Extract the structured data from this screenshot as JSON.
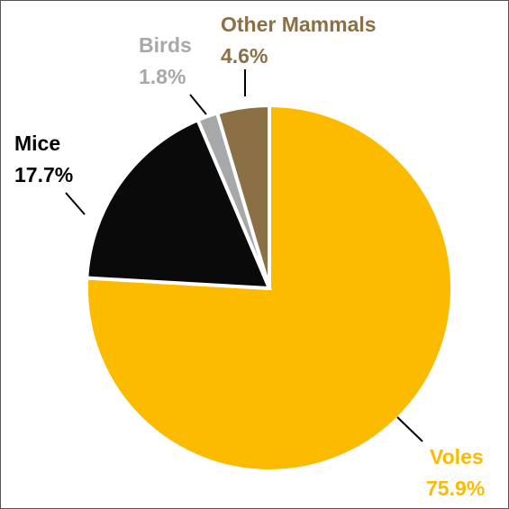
{
  "chart_data": {
    "type": "pie",
    "title": "",
    "slices": [
      {
        "name": "Voles",
        "value": 75.9,
        "label": "75.9%",
        "color": "#FDBB00",
        "text_color": "#FDBB00"
      },
      {
        "name": "Mice",
        "value": 17.7,
        "label": "17.7%",
        "color": "#0A0A0A",
        "text_color": "#000000"
      },
      {
        "name": "Birds",
        "value": 1.8,
        "label": "1.8%",
        "color": "#A7A8AA",
        "text_color": "#A7A8AA"
      },
      {
        "name": "Other Mammals",
        "value": 4.6,
        "label": "4.6%",
        "color": "#8B7045",
        "text_color": "#8B7045"
      }
    ],
    "start_angle": "12 o'clock",
    "direction": "clockwise",
    "legend": "none"
  }
}
